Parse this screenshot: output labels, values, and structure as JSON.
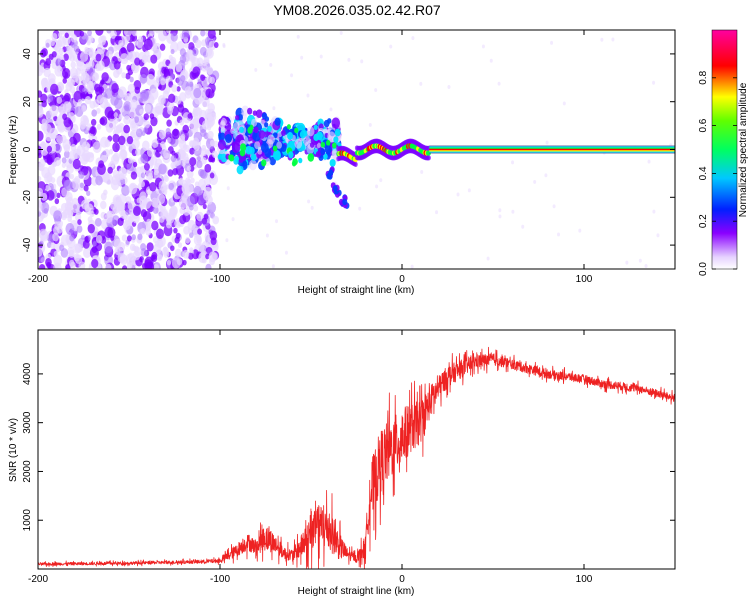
{
  "title": "YM08.2026.035.02.42.R07",
  "chart_data": [
    {
      "type": "heatmap",
      "xlabel": "Height of straight line (km)",
      "ylabel": "Frequency (Hz)",
      "xlim": [
        -200,
        150
      ],
      "ylim": [
        -50,
        50
      ],
      "xticks": [
        "-200",
        "-100",
        "0",
        "100"
      ],
      "xtick_values": [
        -200,
        -100,
        0,
        100
      ],
      "yticks": [
        "-40",
        "-20",
        "0",
        "20",
        "40"
      ],
      "ytick_values": [
        -40,
        -20,
        0,
        20,
        40
      ],
      "grid": false,
      "colorbar": {
        "label": "Normalized spectral amplitude",
        "range": [
          0,
          1
        ],
        "ticks": [
          "0.0",
          "0.2",
          "0.4",
          "0.6",
          "0.8"
        ],
        "tick_values": [
          0,
          0.2,
          0.4,
          0.6,
          0.8
        ]
      },
      "features": {
        "noise_region_x": [
          -200,
          -102
        ],
        "signal_onset_x": -100,
        "steady_line_x": [
          15,
          150
        ],
        "steady_line_frequency": 0,
        "downward_branch": [
          [
            -45,
            -2
          ],
          [
            -40,
            -10
          ],
          [
            -36,
            -17
          ],
          [
            -32,
            -22
          ]
        ]
      },
      "colors": {
        "low": "#e8d8ff",
        "mid_low": "#7a00ff",
        "mid": "#0040ff",
        "mid_high": "#00e0ff",
        "high": "#00ff40",
        "higher": "#ffff00",
        "top": "#ff0000",
        "max": "#ff00a0"
      }
    },
    {
      "type": "line",
      "xlabel": "Height of straight line (km)",
      "ylabel": "SNR (10 * v/v)",
      "xlim": [
        -200,
        150
      ],
      "ylim": [
        0,
        4900
      ],
      "xticks": [
        "-200",
        "-100",
        "0",
        "100"
      ],
      "xtick_values": [
        -200,
        -100,
        0,
        100
      ],
      "yticks": [
        "1000",
        "2000",
        "3000",
        "4000"
      ],
      "ytick_values": [
        1000,
        2000,
        3000,
        4000
      ],
      "grid": false,
      "series": [
        {
          "name": "SNR",
          "color": "#ee2222",
          "x": [
            -200,
            -150,
            -110,
            -100,
            -92,
            -85,
            -80,
            -75,
            -70,
            -65,
            -60,
            -55,
            -50,
            -45,
            -40,
            -35,
            -30,
            -25,
            -20,
            -18,
            -15,
            -12,
            -10,
            -5,
            0,
            5,
            10,
            15,
            20,
            25,
            30,
            35,
            40,
            50,
            60,
            70,
            80,
            90,
            100,
            110,
            120,
            130,
            140,
            150
          ],
          "y": [
            100,
            120,
            150,
            170,
            350,
            550,
            450,
            650,
            520,
            330,
            280,
            480,
            700,
            850,
            850,
            500,
            300,
            220,
            450,
            1500,
            1800,
            2200,
            2300,
            2500,
            2700,
            2900,
            3000,
            3400,
            3700,
            3950,
            4050,
            4150,
            4250,
            4300,
            4200,
            4100,
            4000,
            3950,
            3900,
            3800,
            3750,
            3700,
            3600,
            3500
          ],
          "spread": [
            60,
            60,
            70,
            90,
            250,
            350,
            300,
            550,
            400,
            250,
            250,
            500,
            800,
            1000,
            950,
            600,
            250,
            150,
            500,
            1200,
            1300,
            1300,
            1300,
            1200,
            1200,
            1000,
            900,
            700,
            500,
            450,
            400,
            350,
            300,
            250,
            200,
            200,
            180,
            180,
            170,
            170,
            170,
            160,
            160,
            160
          ]
        }
      ]
    }
  ]
}
